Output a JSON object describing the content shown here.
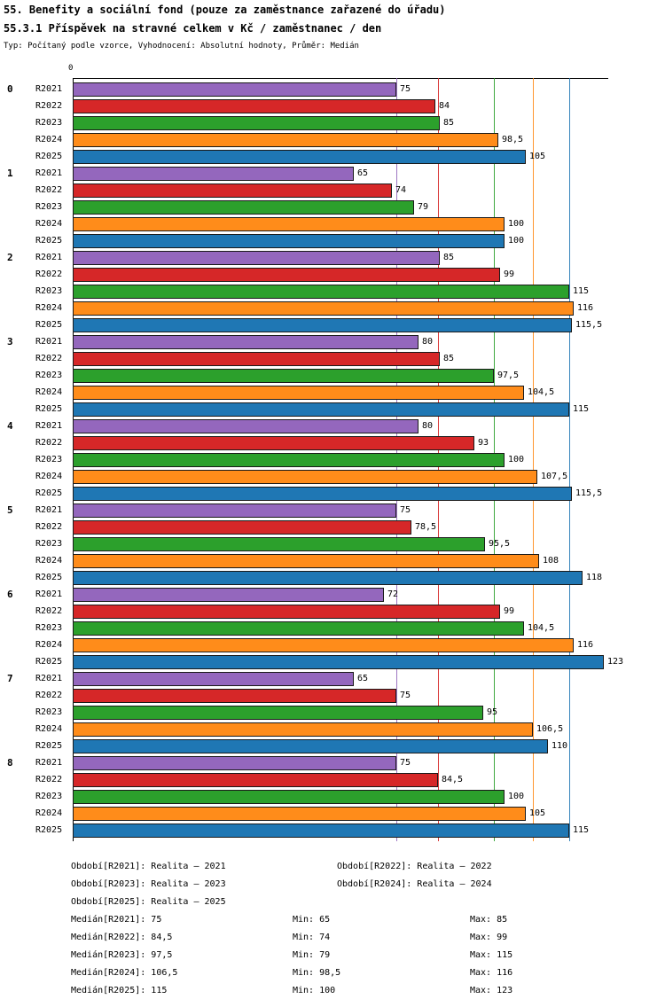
{
  "header": {
    "title_line1": "55. Benefity a sociální fond (pouze za zaměstnance zařazené do úřadu)",
    "title_line2": "55.3.1 Příspěvek na stravné celkem v Kč / zaměstnanec / den",
    "subtitle": "Typ: Počítaný podle vzorce, Vyhodnocení: Absolutní hodnoty, Průměr: Medián"
  },
  "chart_data": {
    "type": "bar",
    "orientation": "horizontal",
    "title": "55.3.1 Příspěvek na stravné celkem v Kč / zaměstnanec / den",
    "xlabel": "",
    "ylabel": "",
    "xlim": [
      0,
      124
    ],
    "axis_zero_label": "0",
    "grid": "vertical median reference lines per series",
    "legend_position": "bottom",
    "series": [
      {
        "name": "R2021",
        "label": "Realita – 2021",
        "color": "#9467bd",
        "median": 75,
        "min": 65,
        "max": 85
      },
      {
        "name": "R2022",
        "label": "Realita – 2022",
        "color": "#d62728",
        "median": 84.5,
        "min": 74,
        "max": 99
      },
      {
        "name": "R2023",
        "label": "Realita – 2023",
        "color": "#2ca02c",
        "median": 97.5,
        "min": 79,
        "max": 115
      },
      {
        "name": "R2024",
        "label": "Realita – 2024",
        "color": "#ff8c1a",
        "median": 106.5,
        "min": 98.5,
        "max": 116
      },
      {
        "name": "R2025",
        "label": "Realita – 2025",
        "color": "#1f77b4",
        "median": 115,
        "min": 100,
        "max": 123
      }
    ],
    "groups": [
      {
        "label": "0",
        "values": [
          75,
          84,
          85,
          98.5,
          105
        ],
        "value_labels": [
          "75",
          "84",
          "85",
          "98,5",
          "105"
        ]
      },
      {
        "label": "1",
        "values": [
          65,
          74,
          79,
          100,
          100
        ],
        "value_labels": [
          "65",
          "74",
          "79",
          "100",
          "100"
        ]
      },
      {
        "label": "2",
        "values": [
          85,
          99,
          115,
          116,
          115.5
        ],
        "value_labels": [
          "85",
          "99",
          "115",
          "116",
          "115,5"
        ]
      },
      {
        "label": "3",
        "values": [
          80,
          85,
          97.5,
          104.5,
          115
        ],
        "value_labels": [
          "80",
          "85",
          "97,5",
          "104,5",
          "115"
        ]
      },
      {
        "label": "4",
        "values": [
          80,
          93,
          100,
          107.5,
          115.5
        ],
        "value_labels": [
          "80",
          "93",
          "100",
          "107,5",
          "115,5"
        ]
      },
      {
        "label": "5",
        "values": [
          75,
          78.5,
          95.5,
          108,
          118
        ],
        "value_labels": [
          "75",
          "78,5",
          "95,5",
          "108",
          "118"
        ]
      },
      {
        "label": "6",
        "values": [
          72,
          99,
          104.5,
          116,
          123
        ],
        "value_labels": [
          "72",
          "99",
          "104,5",
          "116",
          "123"
        ]
      },
      {
        "label": "7",
        "values": [
          65,
          75,
          95,
          106.5,
          110
        ],
        "value_labels": [
          "65",
          "75",
          "95",
          "106,5",
          "110"
        ]
      },
      {
        "label": "8",
        "values": [
          75,
          84.5,
          100,
          105,
          115
        ],
        "value_labels": [
          "75",
          "84,5",
          "100",
          "105",
          "115"
        ]
      }
    ]
  },
  "legend": {
    "period_rows": [
      [
        "Období[R2021]: Realita – 2021",
        "Období[R2022]: Realita – 2022"
      ],
      [
        "Období[R2023]: Realita – 2023",
        "Období[R2024]: Realita – 2024"
      ],
      [
        "Období[R2025]: Realita – 2025"
      ]
    ],
    "stat_rows": [
      [
        "Medián[R2021]: 75",
        "Min: 65",
        "Max: 85"
      ],
      [
        "Medián[R2022]: 84,5",
        "Min: 74",
        "Max: 99"
      ],
      [
        "Medián[R2023]: 97,5",
        "Min: 79",
        "Max: 115"
      ],
      [
        "Medián[R2024]: 106,5",
        "Min: 98,5",
        "Max: 116"
      ],
      [
        "Medián[R2025]: 115",
        "Min: 100",
        "Max: 123"
      ]
    ]
  }
}
